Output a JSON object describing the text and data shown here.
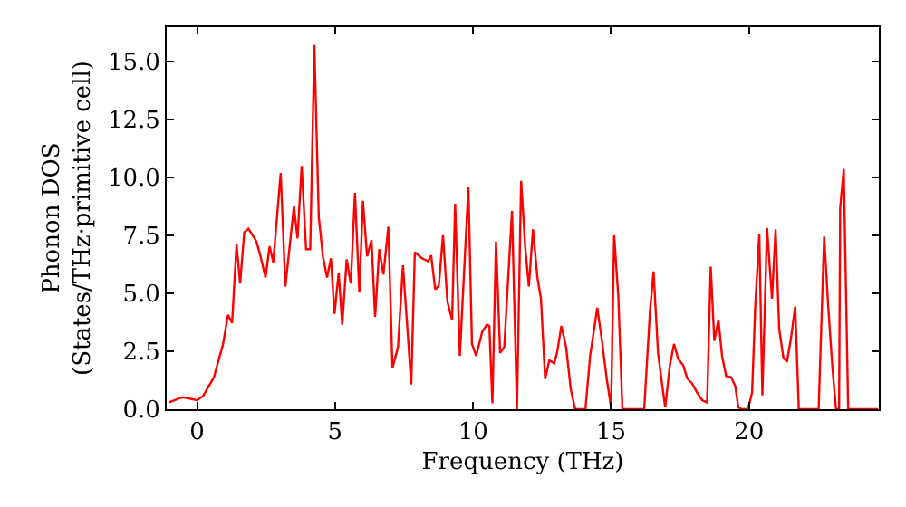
{
  "chart_data": {
    "type": "line",
    "xlabel": "Frequency (THz)",
    "ylabel": "Phonon DOS\n(States/THz·primitive cell)",
    "xlim": [
      -1.1,
      24.7
    ],
    "ylim": [
      0,
      16.5
    ],
    "xticks": [
      0,
      5,
      10,
      15,
      20
    ],
    "yticks": [
      {
        "value": 0,
        "label": "0.0"
      },
      {
        "value": 2.5,
        "label": "2.5"
      },
      {
        "value": 5,
        "label": "5.0"
      },
      {
        "value": 7.5,
        "label": "7.5"
      },
      {
        "value": 10,
        "label": "10.0"
      },
      {
        "value": 12.5,
        "label": "12.5"
      },
      {
        "value": 15,
        "label": "15.0"
      }
    ],
    "marker": "none",
    "line_style": "solid",
    "series": [
      {
        "color": "#ff0000",
        "x": [
          -1.03,
          -0.53,
          0,
          0.22,
          0.61,
          0.94,
          1.12,
          1.27,
          1.43,
          1.56,
          1.71,
          1.86,
          2.15,
          2.3,
          2.48,
          2.63,
          2.76,
          3.03,
          3.2,
          3.51,
          3.64,
          3.79,
          3.95,
          4.1,
          4.25,
          4.41,
          4.56,
          4.71,
          4.85,
          4.98,
          5.13,
          5.26,
          5.42,
          5.57,
          5.72,
          5.88,
          6.01,
          6.16,
          6.32,
          6.45,
          6.6,
          6.75,
          6.93,
          7.08,
          7.28,
          7.46,
          7.76,
          7.89,
          8.15,
          8.37,
          8.48,
          8.63,
          8.76,
          8.91,
          9.07,
          9.24,
          9.35,
          9.52,
          9.83,
          9.96,
          10.11,
          10.33,
          10.5,
          10.59,
          10.7,
          10.83,
          10.98,
          11.13,
          11.41,
          11.59,
          11.74,
          11.89,
          12.02,
          12.17,
          12.33,
          12.46,
          12.61,
          12.76,
          12.94,
          13.04,
          13.2,
          13.37,
          13.54,
          13.7,
          14.07,
          14.24,
          14.5,
          14.67,
          14.85,
          15.0,
          15.11,
          15.26,
          15.41,
          16.2,
          16.41,
          16.54,
          16.7,
          16.83,
          16.96,
          17.13,
          17.28,
          17.43,
          17.61,
          17.76,
          17.93,
          18.11,
          18.3,
          18.48,
          18.61,
          18.74,
          18.89,
          19.02,
          19.17,
          19.35,
          19.5,
          19.61,
          19.74,
          19.96,
          20.11,
          20.22,
          20.37,
          20.48,
          20.65,
          20.83,
          20.96,
          21.09,
          21.24,
          21.37,
          21.52,
          21.67,
          21.8,
          22.52,
          22.72,
          22.87,
          23.02,
          23.15,
          23.26,
          23.3,
          23.43,
          23.59,
          24.67
        ],
        "values": [
          0.29,
          0.52,
          0.39,
          0.57,
          1.38,
          2.8,
          4.07,
          3.73,
          7.12,
          5.43,
          7.64,
          7.8,
          7.25,
          6.6,
          5.69,
          7.04,
          6.34,
          10.2,
          5.3,
          8.77,
          7.38,
          10.51,
          6.91,
          6.91,
          15.73,
          8.3,
          6.6,
          5.69,
          6.52,
          4.12,
          5.9,
          3.65,
          6.47,
          5.43,
          9.34,
          5.04,
          9.0,
          6.6,
          7.3,
          3.99,
          6.91,
          5.82,
          7.88,
          1.77,
          2.69,
          6.21,
          1.07,
          6.78,
          6.52,
          6.39,
          6.65,
          5.17,
          5.35,
          7.51,
          4.64,
          3.86,
          8.87,
          2.3,
          9.6,
          2.82,
          2.3,
          3.34,
          3.65,
          3.6,
          0.26,
          7.25,
          2.43,
          2.69,
          8.56,
          0,
          9.86,
          6.99,
          5.3,
          7.77,
          5.69,
          4.77,
          1.3,
          2.11,
          1.98,
          2.43,
          3.6,
          2.69,
          0.86,
          0,
          0,
          2.3,
          4.38,
          2.95,
          1.25,
          0.08,
          7.51,
          4.9,
          0,
          0,
          4.25,
          5.95,
          2.43,
          1.25,
          0.08,
          1.9,
          2.82,
          2.17,
          1.9,
          1.33,
          1.12,
          0.73,
          0.39,
          0.29,
          6.16,
          2.95,
          3.86,
          2.3,
          1.43,
          1.38,
          0.99,
          0.08,
          0,
          0,
          0.73,
          4.38,
          7.57,
          0.6,
          7.83,
          4.77,
          7.77,
          3.47,
          2.24,
          2.04,
          3.08,
          4.44,
          0,
          0,
          7.46,
          4.38,
          1.77,
          0,
          0,
          8.69,
          10.38,
          0,
          0
        ]
      }
    ]
  }
}
